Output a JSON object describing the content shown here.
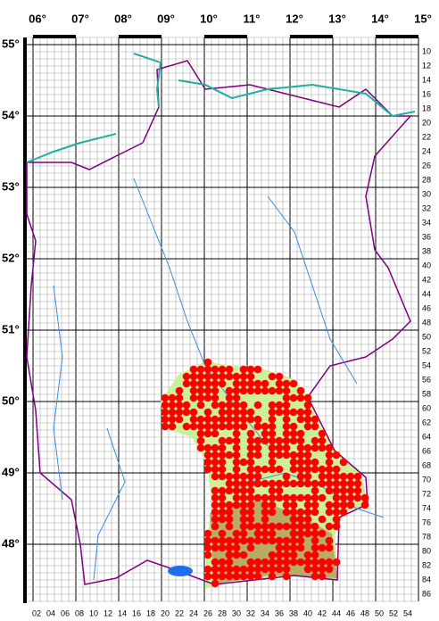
{
  "top_labels": [
    "06°",
    "07°",
    "08°",
    "09°",
    "10°",
    "11°",
    "12°",
    "13°",
    "14°",
    "15°"
  ],
  "left_labels": [
    "55°",
    "54°",
    "53°",
    "52°",
    "51°",
    "50°",
    "49°",
    "48°"
  ],
  "right_labels": [
    "10",
    "12",
    "14",
    "16",
    "18",
    "20",
    "22",
    "24",
    "26",
    "28",
    "30",
    "32",
    "34",
    "36",
    "38",
    "40",
    "42",
    "44",
    "46",
    "48",
    "50",
    "52",
    "54",
    "56",
    "58",
    "60",
    "62",
    "64",
    "66",
    "68",
    "70",
    "72",
    "74",
    "76",
    "78",
    "80",
    "82",
    "84",
    "86"
  ],
  "bottom_labels": [
    "02",
    "04",
    "06",
    "08",
    "10",
    "12",
    "14",
    "16",
    "18",
    "20",
    "22",
    "24",
    "26",
    "28",
    "30",
    "32",
    "34",
    "36",
    "38",
    "40",
    "42",
    "44",
    "46",
    "48",
    "50",
    "52",
    "54"
  ]
}
